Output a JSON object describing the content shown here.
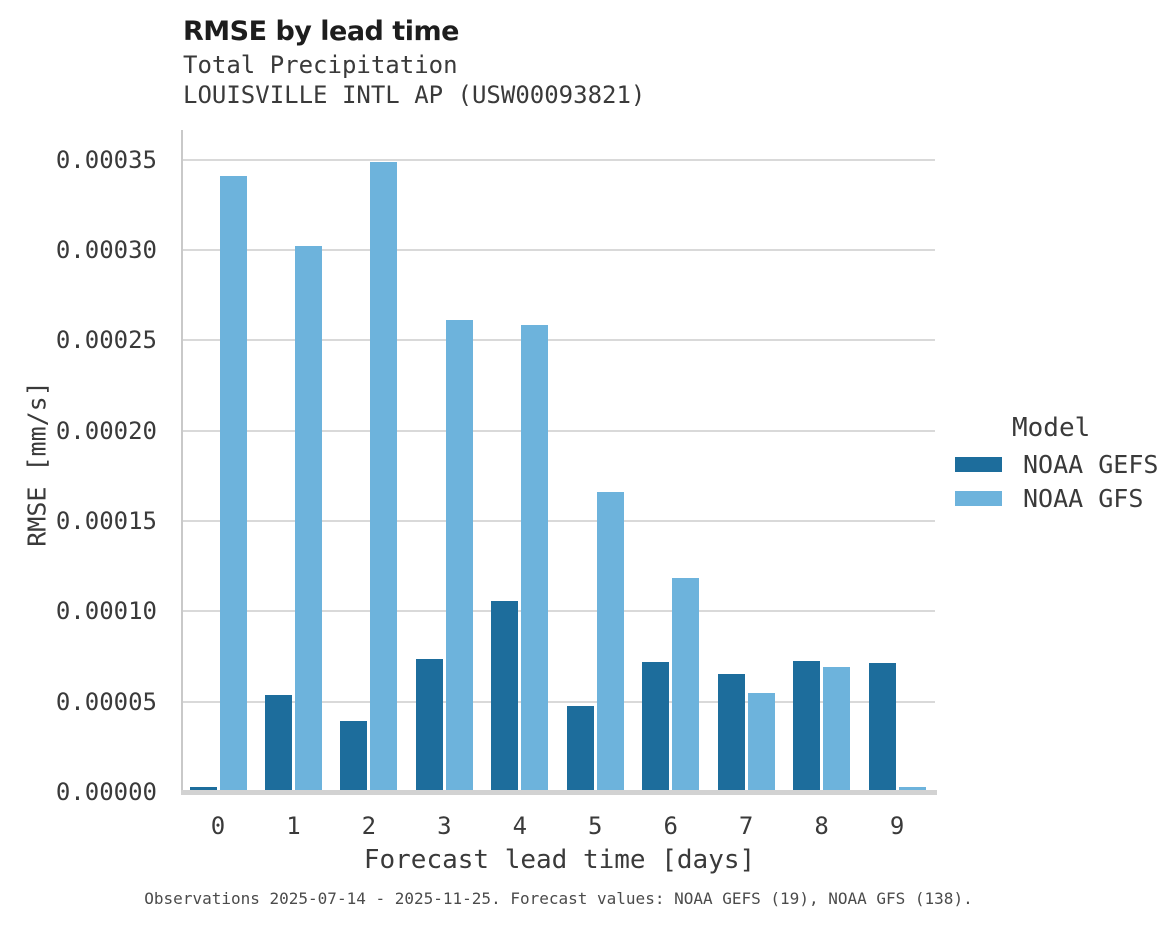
{
  "header": {
    "title": "RMSE by lead time",
    "subtitle_line1": "Total Precipitation",
    "subtitle_line2": "LOUISVILLE INTL AP (USW00093821)"
  },
  "axes": {
    "x_title": "Forecast lead time [days]",
    "y_title": "RMSE [mm/s]"
  },
  "legend": {
    "title": "Model",
    "items": [
      {
        "label": "NOAA GEFS",
        "color": "#1d6d9c"
      },
      {
        "label": "NOAA GFS",
        "color": "#6db3dc"
      }
    ]
  },
  "footer": {
    "text": "Observations 2025-07-14 - 2025-11-25. Forecast values: NOAA GEFS (19), NOAA GFS (138)."
  },
  "chart_data": {
    "type": "bar",
    "title": "RMSE by lead time",
    "subtitle": [
      "Total Precipitation",
      "LOUISVILLE INTL AP (USW00093821)"
    ],
    "xlabel": "Forecast lead time [days]",
    "ylabel": "RMSE [mm/s]",
    "categories": [
      "0",
      "1",
      "2",
      "3",
      "4",
      "5",
      "6",
      "7",
      "8",
      "9"
    ],
    "series": [
      {
        "name": "NOAA GEFS",
        "color": "#1d6d9c",
        "values": [
          3e-06,
          5.37e-05,
          3.95e-05,
          7.36e-05,
          0.0001055,
          4.78e-05,
          7.22e-05,
          6.55e-05,
          7.23e-05,
          7.16e-05
        ]
      },
      {
        "name": "NOAA GFS",
        "color": "#6db3dc",
        "values": [
          0.000341,
          0.0003023,
          0.000349,
          0.0002612,
          0.0002588,
          0.0001662,
          0.0001185,
          5.5e-05,
          6.93e-05,
          2.8e-06
        ]
      }
    ],
    "ylim": [
      0,
      0.0003665
    ],
    "yticks": [
      0,
      5e-05,
      0.0001,
      0.00015,
      0.0002,
      0.00025,
      0.0003,
      0.00035
    ],
    "ytick_labels": [
      "0.00000",
      "0.00005",
      "0.00010",
      "0.00015",
      "0.00020",
      "0.00025",
      "0.00030",
      "0.00035"
    ],
    "grid": "horizontal-only",
    "legend_position": "right",
    "legend_title": "Model"
  }
}
